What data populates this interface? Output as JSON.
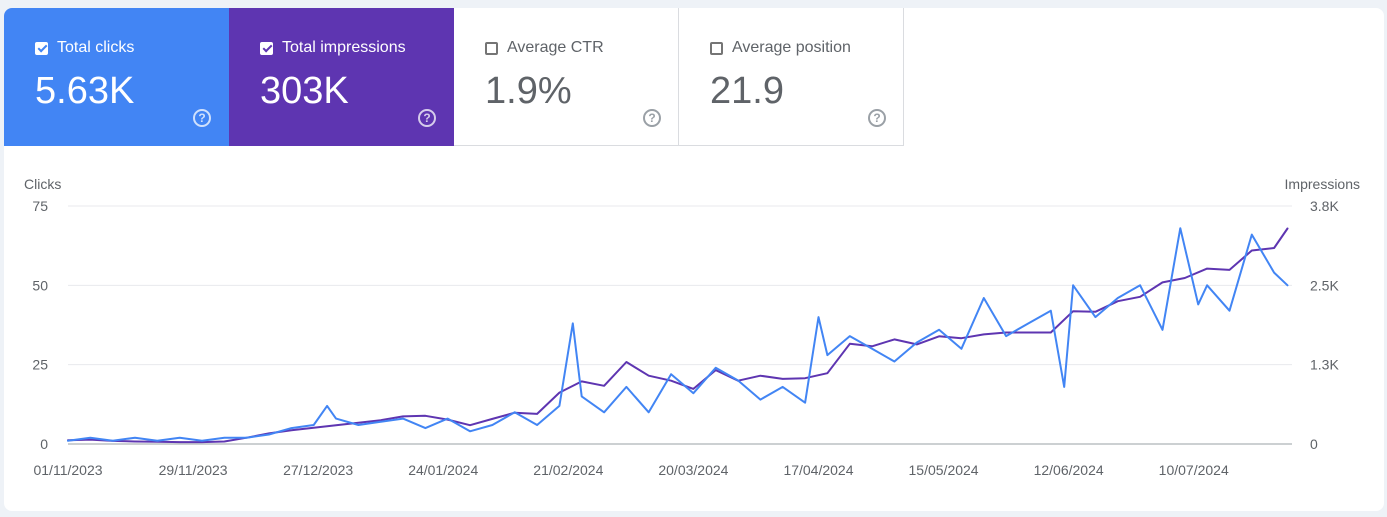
{
  "cards": [
    {
      "label": "Total clicks",
      "value": "5.63K",
      "checked": true
    },
    {
      "label": "Total impressions",
      "value": "303K",
      "checked": true
    },
    {
      "label": "Average CTR",
      "value": "1.9%",
      "checked": false
    },
    {
      "label": "Average position",
      "value": "21.9",
      "checked": false
    }
  ],
  "help_glyph": "?",
  "colors": {
    "clicks": "#4285f4",
    "impressions": "#5e35b1",
    "grid": "#e8eaed",
    "axis_text": "#5f6368"
  },
  "chart_data": {
    "type": "line",
    "title": "",
    "ylabel_left": "Clicks",
    "ylabel_right": "Impressions",
    "left_ticks": [
      "0",
      "25",
      "50",
      "75"
    ],
    "right_ticks": [
      "0",
      "1.3K",
      "2.5K",
      "3.8K"
    ],
    "ylim_left": [
      0,
      75
    ],
    "ylim_right": [
      0,
      3800
    ],
    "x_tick_labels": [
      "01/11/2023",
      "29/11/2023",
      "27/12/2023",
      "24/01/2024",
      "21/02/2024",
      "20/03/2024",
      "17/04/2024",
      "15/05/2024",
      "12/06/2024",
      "10/07/2024"
    ],
    "x_tick_days": [
      0,
      28,
      56,
      84,
      112,
      140,
      168,
      196,
      224,
      252
    ],
    "days_span": 274,
    "series": [
      {
        "name": "Total clicks",
        "axis": "left",
        "color": "#4285f4",
        "days": [
          0,
          5,
          10,
          15,
          20,
          25,
          30,
          35,
          40,
          45,
          50,
          55,
          58,
          60,
          65,
          70,
          75,
          80,
          85,
          90,
          95,
          100,
          105,
          110,
          113,
          115,
          120,
          125,
          130,
          135,
          140,
          145,
          150,
          155,
          160,
          165,
          168,
          170,
          175,
          180,
          185,
          190,
          195,
          200,
          205,
          210,
          215,
          220,
          223,
          225,
          230,
          235,
          240,
          245,
          249,
          253,
          255,
          260,
          265,
          270,
          273
        ],
        "values": [
          1,
          2,
          1,
          2,
          1,
          2,
          1,
          2,
          2,
          3,
          5,
          6,
          12,
          8,
          6,
          7,
          8,
          5,
          8,
          4,
          6,
          10,
          6,
          12,
          38,
          15,
          10,
          18,
          10,
          22,
          16,
          24,
          20,
          14,
          18,
          13,
          40,
          28,
          34,
          30,
          26,
          32,
          36,
          30,
          46,
          34,
          38,
          42,
          18,
          50,
          40,
          46,
          50,
          36,
          68,
          44,
          50,
          42,
          66,
          54,
          50
        ]
      },
      {
        "name": "Total impressions",
        "axis": "right",
        "color": "#5e35b1",
        "days": [
          0,
          5,
          10,
          15,
          20,
          25,
          30,
          35,
          40,
          45,
          50,
          55,
          60,
          65,
          70,
          75,
          80,
          85,
          90,
          95,
          100,
          105,
          110,
          115,
          120,
          125,
          130,
          135,
          140,
          145,
          150,
          155,
          160,
          165,
          170,
          175,
          180,
          185,
          190,
          195,
          200,
          205,
          210,
          215,
          220,
          225,
          230,
          235,
          240,
          245,
          250,
          255,
          260,
          265,
          270,
          273
        ],
        "values": [
          60,
          70,
          50,
          40,
          35,
          30,
          30,
          40,
          100,
          170,
          220,
          260,
          300,
          340,
          380,
          440,
          450,
          390,
          300,
          400,
          500,
          480,
          820,
          1000,
          930,
          1310,
          1090,
          1010,
          880,
          1180,
          1010,
          1090,
          1040,
          1050,
          1130,
          1600,
          1560,
          1670,
          1590,
          1720,
          1690,
          1750,
          1780,
          1780,
          1780,
          2120,
          2110,
          2280,
          2350,
          2580,
          2650,
          2800,
          2780,
          3090,
          3130,
          3440
        ]
      }
    ]
  }
}
